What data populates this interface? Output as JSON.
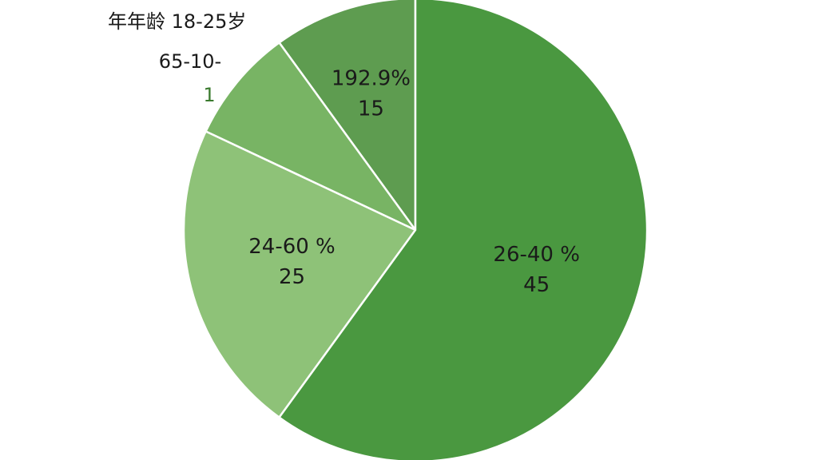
{
  "chart_data": {
    "type": "pie",
    "values": [
      60,
      22,
      8,
      10
    ],
    "colors": [
      "#4a9840",
      "#8ec278",
      "#78b464",
      "#5e9c50"
    ],
    "slice_labels": [
      [
        "26-40 %",
        "45"
      ],
      [
        "24-60 %",
        "25"
      ],
      null,
      [
        "192.9%",
        "15"
      ]
    ],
    "annotations": [
      "年年龄 18-25岁",
      "65-10-",
      "1"
    ]
  }
}
